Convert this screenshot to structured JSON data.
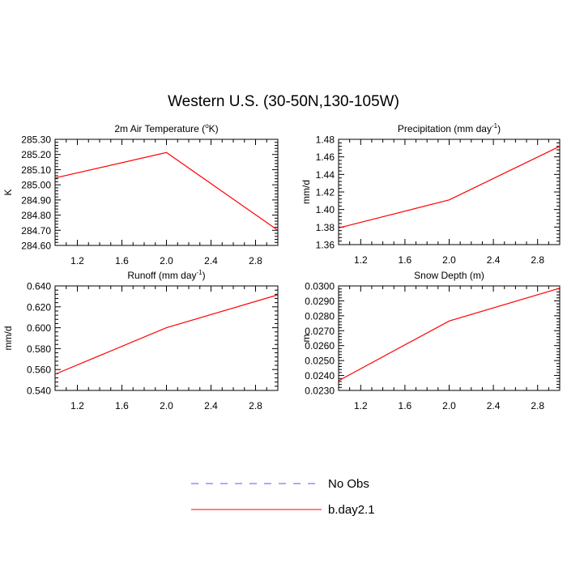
{
  "page_title": "Western U.S. (30-50N,130-105W)",
  "chart_data": [
    {
      "type": "line",
      "title": "2m Air Temperature (°K)",
      "title_parts": {
        "pre": "2m Air Temperature (",
        "sup": "o",
        "post": "K)"
      },
      "ylabel": "K",
      "xlabel": "",
      "xlim": [
        1,
        3
      ],
      "ylim": [
        284.6,
        285.3
      ],
      "xticks": [
        "1.2",
        "1.6",
        "2.0",
        "2.4",
        "2.8"
      ],
      "yticks": [
        "284.60",
        "284.70",
        "284.80",
        "284.90",
        "285.00",
        "285.10",
        "285.20",
        "285.30"
      ],
      "x": [
        1,
        2,
        3
      ],
      "series": [
        {
          "name": "b.day2.1",
          "values": [
            285.045,
            285.213,
            284.7
          ]
        }
      ]
    },
    {
      "type": "line",
      "title": "Precipitation (mm day-1)",
      "title_parts": {
        "pre": "Precipitation (mm day",
        "sup": "-1",
        "post": ")"
      },
      "ylabel": "mm/d",
      "xlabel": "",
      "xlim": [
        1,
        3
      ],
      "ylim": [
        1.36,
        1.48
      ],
      "xticks": [
        "1.2",
        "1.6",
        "2.0",
        "2.4",
        "2.8"
      ],
      "yticks": [
        "1.36",
        "1.38",
        "1.40",
        "1.42",
        "1.44",
        "1.46",
        "1.48"
      ],
      "x": [
        1,
        2,
        3
      ],
      "series": [
        {
          "name": "b.day2.1",
          "values": [
            1.379,
            1.411,
            1.472
          ]
        }
      ]
    },
    {
      "type": "line",
      "title": "Runoff (mm day-1)",
      "title_parts": {
        "pre": "Runoff (mm day",
        "sup": "-1",
        "post": ")"
      },
      "ylabel": "mm/d",
      "xlabel": "",
      "xlim": [
        1,
        3
      ],
      "ylim": [
        0.54,
        0.64
      ],
      "xticks": [
        "1.2",
        "1.6",
        "2.0",
        "2.4",
        "2.8"
      ],
      "yticks": [
        "0.540",
        "0.560",
        "0.580",
        "0.600",
        "0.620",
        "0.640"
      ],
      "x": [
        1,
        2,
        3
      ],
      "series": [
        {
          "name": "b.day2.1",
          "values": [
            0.5555,
            0.6,
            0.6315
          ]
        }
      ]
    },
    {
      "type": "line",
      "title": "Snow Depth (m)",
      "title_parts": {
        "pre": "Snow Depth (m)",
        "sup": "",
        "post": ""
      },
      "ylabel": "m",
      "xlabel": "",
      "xlim": [
        1,
        3
      ],
      "ylim": [
        0.023,
        0.03
      ],
      "xticks": [
        "1.2",
        "1.6",
        "2.0",
        "2.4",
        "2.8"
      ],
      "yticks": [
        "0.0230",
        "0.0240",
        "0.0250",
        "0.0260",
        "0.0270",
        "0.0280",
        "0.0290",
        "0.0300"
      ],
      "x": [
        1,
        2,
        3
      ],
      "series": [
        {
          "name": "b.day2.1",
          "values": [
            0.02365,
            0.02765,
            0.02985
          ]
        }
      ]
    }
  ],
  "legend": {
    "placement": "bottom-center",
    "items": [
      {
        "label": "No Obs",
        "color": "#5555ff",
        "dash": "dashed"
      },
      {
        "label": "b.day2.1",
        "color": "#ff0000",
        "dash": "solid"
      }
    ]
  },
  "colors": {
    "series": "#ff0000",
    "obs": "#5555ff",
    "axis": "#000000"
  }
}
